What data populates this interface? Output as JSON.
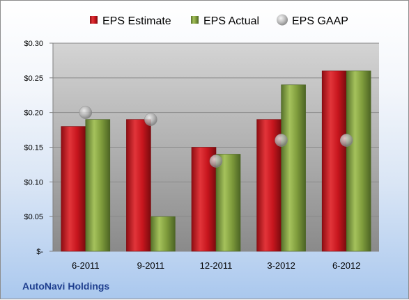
{
  "company_name": "AutoNavi Holdings",
  "chart_data": {
    "type": "bar",
    "categories": [
      "6-2011",
      "9-2011",
      "12-2011",
      "3-2012",
      "6-2012"
    ],
    "series": [
      {
        "name": "EPS Estimate",
        "kind": "bar",
        "color": "#c0161e",
        "values": [
          0.18,
          0.19,
          0.15,
          0.19,
          0.26
        ]
      },
      {
        "name": "EPS Actual",
        "kind": "bar",
        "color": "#7f9c3c",
        "values": [
          0.19,
          0.05,
          0.14,
          0.24,
          0.26
        ]
      },
      {
        "name": "EPS GAAP",
        "kind": "marker",
        "color": "#a9a9a9",
        "values": [
          0.2,
          0.19,
          0.13,
          0.16,
          0.16
        ]
      }
    ],
    "ylim": [
      0,
      0.3
    ],
    "ytick_values": [
      0,
      0.05,
      0.1,
      0.15,
      0.2,
      0.25,
      0.3
    ],
    "ytick_labels": [
      "$-",
      "$0.05",
      "$0.10",
      "$0.15",
      "$0.20",
      "$0.25",
      "$0.30"
    ],
    "grid": true,
    "legend_position": "top"
  }
}
